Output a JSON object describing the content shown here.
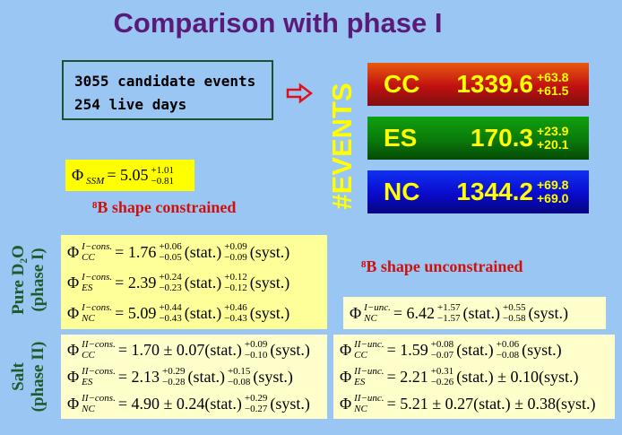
{
  "title": "Comparison with phase I",
  "summary": {
    "lines": [
      "3055 candidate events",
      "254 live days"
    ]
  },
  "events_label": "#EVENTS",
  "events": [
    {
      "name": "CC",
      "value": 1339.6,
      "plus": "+63.8",
      "minus": "+61.5"
    },
    {
      "name": "ES",
      "value": 170.3,
      "plus": "+23.9",
      "minus": "+20.1"
    },
    {
      "name": "NC",
      "value": 1344.2,
      "plus": "+69.8",
      "minus": "+69.0"
    }
  ],
  "ssm": [
    "Φ",
    {
      "sub": "SSM"
    },
    "= 5.05",
    {
      "sup": "+1.01",
      "sub": "−0.81"
    }
  ],
  "constrained_label": "⁸B shape constrained",
  "unconstrained_label": "⁸B shape unconstrained",
  "phase_labels": [
    {
      "lines": [
        "Pure D₂O",
        "(phase I)"
      ]
    },
    {
      "lines": [
        "Salt",
        "(phase II)"
      ]
    }
  ],
  "phase1_constrained": [
    [
      "Φ",
      {
        "sup": "I−cons.",
        "sub": "CC"
      },
      "= 1.76",
      {
        "sup": "+0.06",
        "sub": "−0.05"
      },
      "(stat.)",
      {
        "sup": "+0.09",
        "sub": "−0.09"
      },
      "(syst.)"
    ],
    [
      "Φ",
      {
        "sup": "I−cons.",
        "sub": "ES"
      },
      "= 2.39",
      {
        "sup": "+0.24",
        "sub": "−0.23"
      },
      "(stat.)",
      {
        "sup": "+0.12",
        "sub": "−0.12"
      },
      "(syst.)"
    ],
    [
      "Φ",
      {
        "sup": "I−cons.",
        "sub": "NC"
      },
      "= 5.09",
      {
        "sup": "+0.44",
        "sub": "−0.43"
      },
      "(stat.)",
      {
        "sup": "+0.46",
        "sub": "−0.43"
      },
      "(syst.)"
    ]
  ],
  "phase1_unconstrained": [
    [
      "Φ",
      {
        "sup": "I−unc.",
        "sub": "NC"
      },
      "= 6.42",
      {
        "sup": "+1.57",
        "sub": "−1.57"
      },
      "(stat.)",
      {
        "sup": "+0.55",
        "sub": "−0.58"
      },
      "(syst.)"
    ]
  ],
  "phase2_constrained": [
    [
      "Φ",
      {
        "sup": "II−cons.",
        "sub": "CC"
      },
      "= 1.70 ± 0.07(stat.)",
      {
        "sup": "+0.09",
        "sub": "−0.10"
      },
      "(syst.)"
    ],
    [
      "Φ",
      {
        "sup": "II−cons.",
        "sub": "ES"
      },
      "= 2.13",
      {
        "sup": "+0.29",
        "sub": "−0.28"
      },
      "(stat.)",
      {
        "sup": "+0.15",
        "sub": "−0.08"
      },
      "(syst.)"
    ],
    [
      "Φ",
      {
        "sup": "II−cons.",
        "sub": "NC"
      },
      "= 4.90 ± 0.24(stat.)",
      {
        "sup": "+0.29",
        "sub": "−0.27"
      },
      "(syst.)"
    ]
  ],
  "phase2_unconstrained": [
    [
      "Φ",
      {
        "sup": "II−unc.",
        "sub": "CC"
      },
      "= 1.59",
      {
        "sup": "+0.08",
        "sub": "−0.07"
      },
      "(stat.)",
      {
        "sup": "+0.06",
        "sub": "−0.08"
      },
      "(syst.)"
    ],
    [
      "Φ",
      {
        "sup": "II−unc.",
        "sub": "ES"
      },
      "= 2.21",
      {
        "sup": "+0.31",
        "sub": "−0.26"
      },
      "(stat.) ± 0.10(syst.)"
    ],
    [
      "Φ",
      {
        "sup": "II−unc.",
        "sub": "NC"
      },
      "= 5.21 ± 0.27(stat.) ± 0.38(syst.)"
    ]
  ]
}
